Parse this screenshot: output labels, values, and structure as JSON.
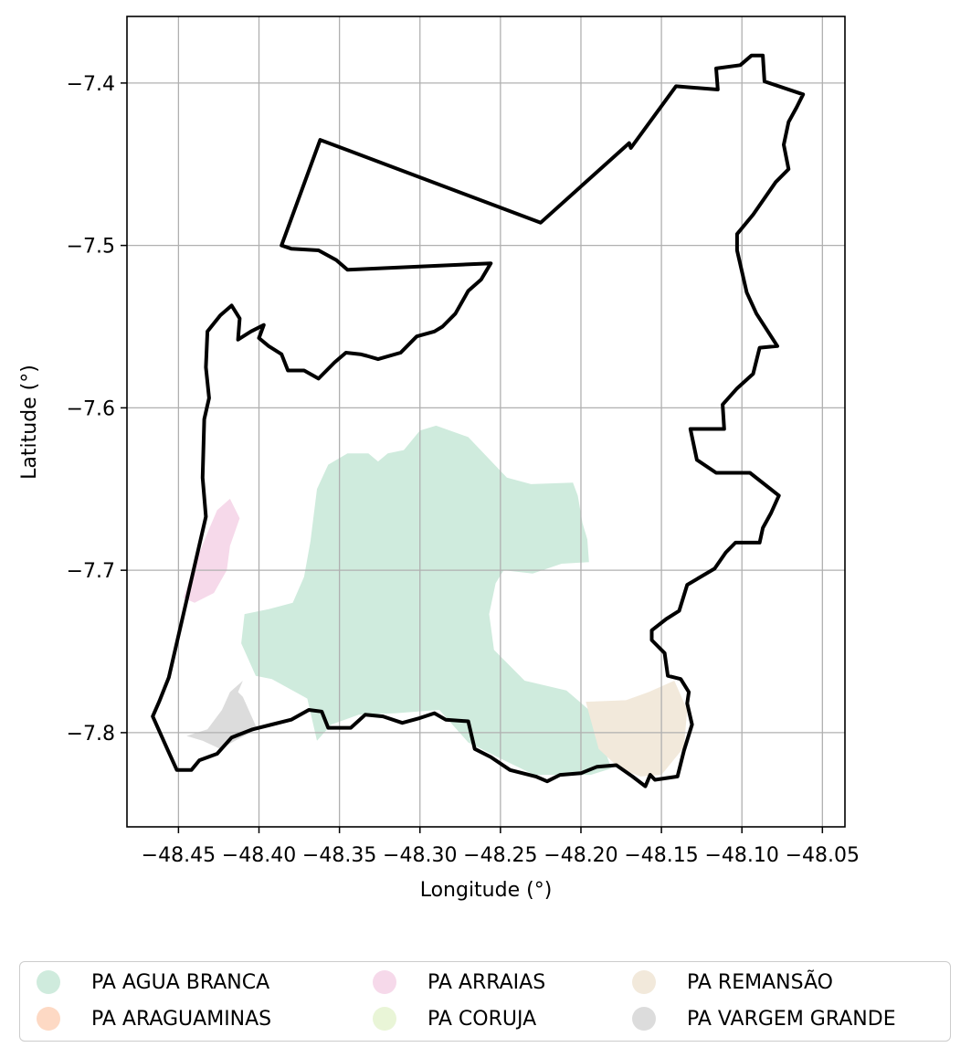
{
  "chart_data": {
    "type": "map",
    "xlabel": "Longitude (°)",
    "ylabel": "Latitude (°)",
    "xlim": [
      -48.482,
      -48.036
    ],
    "ylim": [
      -7.858,
      -7.359
    ],
    "grid": true,
    "xticks": [
      -48.45,
      -48.4,
      -48.35,
      -48.3,
      -48.25,
      -48.2,
      -48.15,
      -48.1,
      -48.05
    ],
    "xtick_labels": [
      "−48.45",
      "−48.40",
      "−48.35",
      "−48.30",
      "−48.25",
      "−48.20",
      "−48.15",
      "−48.10",
      "−48.05"
    ],
    "yticks": [
      -7.4,
      -7.5,
      -7.6,
      -7.7,
      -7.8
    ],
    "ytick_labels": [
      "−7.4",
      "−7.5",
      "−7.6",
      "−7.7",
      "−7.8"
    ],
    "legend_placement": "below plot",
    "boundary": {
      "color": "#000000",
      "coords": [
        [
          -48.386,
          -7.5
        ],
        [
          -48.362,
          -7.435
        ],
        [
          -48.225,
          -7.486
        ],
        [
          -48.17,
          -7.437
        ],
        [
          -48.169,
          -7.44
        ],
        [
          -48.141,
          -7.402
        ],
        [
          -48.115,
          -7.404
        ],
        [
          -48.116,
          -7.391
        ],
        [
          -48.101,
          -7.389
        ],
        [
          -48.094,
          -7.383
        ],
        [
          -48.087,
          -7.383
        ],
        [
          -48.086,
          -7.399
        ],
        [
          -48.062,
          -7.407
        ],
        [
          -48.066,
          -7.415
        ],
        [
          -48.071,
          -7.424
        ],
        [
          -48.074,
          -7.438
        ],
        [
          -48.071,
          -7.453
        ],
        [
          -48.079,
          -7.461
        ],
        [
          -48.093,
          -7.481
        ],
        [
          -48.103,
          -7.493
        ],
        [
          -48.103,
          -7.503
        ],
        [
          -48.097,
          -7.529
        ],
        [
          -48.091,
          -7.542
        ],
        [
          -48.078,
          -7.562
        ],
        [
          -48.089,
          -7.563
        ],
        [
          -48.093,
          -7.579
        ],
        [
          -48.103,
          -7.588
        ],
        [
          -48.112,
          -7.598
        ],
        [
          -48.111,
          -7.613
        ],
        [
          -48.132,
          -7.613
        ],
        [
          -48.128,
          -7.632
        ],
        [
          -48.116,
          -7.64
        ],
        [
          -48.095,
          -7.64
        ],
        [
          -48.077,
          -7.654
        ],
        [
          -48.082,
          -7.665
        ],
        [
          -48.087,
          -7.674
        ],
        [
          -48.089,
          -7.683
        ],
        [
          -48.104,
          -7.683
        ],
        [
          -48.11,
          -7.689
        ],
        [
          -48.117,
          -7.699
        ],
        [
          -48.134,
          -7.709
        ],
        [
          -48.139,
          -7.725
        ],
        [
          -48.147,
          -7.73
        ],
        [
          -48.156,
          -7.737
        ],
        [
          -48.156,
          -7.743
        ],
        [
          -48.148,
          -7.751
        ],
        [
          -48.146,
          -7.765
        ],
        [
          -48.138,
          -7.767
        ],
        [
          -48.133,
          -7.775
        ],
        [
          -48.134,
          -7.782
        ],
        [
          -48.131,
          -7.795
        ],
        [
          -48.136,
          -7.811
        ],
        [
          -48.14,
          -7.827
        ],
        [
          -48.154,
          -7.829
        ],
        [
          -48.157,
          -7.826
        ],
        [
          -48.16,
          -7.833
        ],
        [
          -48.168,
          -7.827
        ],
        [
          -48.178,
          -7.82
        ],
        [
          -48.19,
          -7.821
        ],
        [
          -48.2,
          -7.825
        ],
        [
          -48.213,
          -7.826
        ],
        [
          -48.221,
          -7.83
        ],
        [
          -48.228,
          -7.827
        ],
        [
          -48.244,
          -7.823
        ],
        [
          -48.256,
          -7.815
        ],
        [
          -48.266,
          -7.81
        ],
        [
          -48.27,
          -7.793
        ],
        [
          -48.284,
          -7.792
        ],
        [
          -48.291,
          -7.788
        ],
        [
          -48.3,
          -7.791
        ],
        [
          -48.311,
          -7.794
        ],
        [
          -48.323,
          -7.79
        ],
        [
          -48.334,
          -7.789
        ],
        [
          -48.343,
          -7.797
        ],
        [
          -48.357,
          -7.797
        ],
        [
          -48.361,
          -7.787
        ],
        [
          -48.369,
          -7.786
        ],
        [
          -48.38,
          -7.792
        ],
        [
          -48.392,
          -7.795
        ],
        [
          -48.404,
          -7.798
        ],
        [
          -48.417,
          -7.803
        ],
        [
          -48.426,
          -7.813
        ],
        [
          -48.437,
          -7.817
        ],
        [
          -48.442,
          -7.823
        ],
        [
          -48.451,
          -7.823
        ],
        [
          -48.457,
          -7.81
        ],
        [
          -48.466,
          -7.79
        ],
        [
          -48.462,
          -7.781
        ],
        [
          -48.456,
          -7.766
        ],
        [
          -48.433,
          -7.667
        ],
        [
          -48.435,
          -7.643
        ],
        [
          -48.434,
          -7.607
        ],
        [
          -48.431,
          -7.594
        ],
        [
          -48.433,
          -7.575
        ],
        [
          -48.432,
          -7.553
        ],
        [
          -48.424,
          -7.543
        ],
        [
          -48.417,
          -7.537
        ],
        [
          -48.412,
          -7.545
        ],
        [
          -48.413,
          -7.558
        ],
        [
          -48.405,
          -7.553
        ],
        [
          -48.397,
          -7.549
        ],
        [
          -48.4,
          -7.557
        ],
        [
          -48.394,
          -7.562
        ],
        [
          -48.386,
          -7.567
        ],
        [
          -48.382,
          -7.577
        ],
        [
          -48.372,
          -7.577
        ],
        [
          -48.363,
          -7.582
        ],
        [
          -48.353,
          -7.572
        ],
        [
          -48.346,
          -7.566
        ],
        [
          -48.337,
          -7.567
        ],
        [
          -48.333,
          -7.568
        ],
        [
          -48.326,
          -7.57
        ],
        [
          -48.312,
          -7.566
        ],
        [
          -48.302,
          -7.556
        ],
        [
          -48.291,
          -7.553
        ],
        [
          -48.286,
          -7.55
        ],
        [
          -48.278,
          -7.542
        ],
        [
          -48.27,
          -7.528
        ],
        [
          -48.262,
          -7.521
        ],
        [
          -48.256,
          -7.511
        ],
        [
          -48.345,
          -7.515
        ],
        [
          -48.352,
          -7.509
        ],
        [
          -48.363,
          -7.503
        ],
        [
          -48.38,
          -7.502
        ],
        [
          -48.386,
          -7.5
        ]
      ]
    },
    "regions": [
      {
        "name": "PA AGUA BRANCA",
        "color": "#cfebdd",
        "coords": [
          [
            -48.364,
            -7.805
          ],
          [
            -48.37,
            -7.779
          ],
          [
            -48.392,
            -7.767
          ],
          [
            -48.402,
            -7.765
          ],
          [
            -48.411,
            -7.745
          ],
          [
            -48.409,
            -7.727
          ],
          [
            -48.394,
            -7.724
          ],
          [
            -48.379,
            -7.72
          ],
          [
            -48.372,
            -7.704
          ],
          [
            -48.368,
            -7.682
          ],
          [
            -48.364,
            -7.65
          ],
          [
            -48.357,
            -7.635
          ],
          [
            -48.345,
            -7.628
          ],
          [
            -48.332,
            -7.628
          ],
          [
            -48.326,
            -7.633
          ],
          [
            -48.32,
            -7.628
          ],
          [
            -48.31,
            -7.626
          ],
          [
            -48.3,
            -7.614
          ],
          [
            -48.29,
            -7.611
          ],
          [
            -48.27,
            -7.618
          ],
          [
            -48.246,
            -7.643
          ],
          [
            -48.231,
            -7.647
          ],
          [
            -48.205,
            -7.646
          ],
          [
            -48.202,
            -7.654
          ],
          [
            -48.199,
            -7.671
          ],
          [
            -48.196,
            -7.681
          ],
          [
            -48.195,
            -7.695
          ],
          [
            -48.212,
            -7.696
          ],
          [
            -48.23,
            -7.702
          ],
          [
            -48.248,
            -7.7
          ],
          [
            -48.253,
            -7.708
          ],
          [
            -48.257,
            -7.727
          ],
          [
            -48.254,
            -7.749
          ],
          [
            -48.235,
            -7.768
          ],
          [
            -48.209,
            -7.774
          ],
          [
            -48.195,
            -7.786
          ],
          [
            -48.181,
            -7.822
          ],
          [
            -48.194,
            -7.826
          ],
          [
            -48.215,
            -7.826
          ],
          [
            -48.229,
            -7.826
          ],
          [
            -48.25,
            -7.816
          ],
          [
            -48.27,
            -7.806
          ],
          [
            -48.288,
            -7.786
          ],
          [
            -48.315,
            -7.788
          ],
          [
            -48.338,
            -7.789
          ],
          [
            -48.355,
            -7.795
          ],
          [
            -48.364,
            -7.805
          ]
        ]
      },
      {
        "name": "PA ARAGUAMINAS",
        "color": "#fdd9c4",
        "coords": []
      },
      {
        "name": "PA ARRAIAS",
        "color": "#f6d9ea",
        "coords": [
          [
            -48.432,
            -7.677
          ],
          [
            -48.426,
            -7.663
          ],
          [
            -48.418,
            -7.656
          ],
          [
            -48.412,
            -7.668
          ],
          [
            -48.418,
            -7.685
          ],
          [
            -48.42,
            -7.7
          ],
          [
            -48.428,
            -7.714
          ],
          [
            -48.44,
            -7.72
          ],
          [
            -48.447,
            -7.717
          ],
          [
            -48.441,
            -7.699
          ],
          [
            -48.432,
            -7.677
          ]
        ]
      },
      {
        "name": "PA CORUJA",
        "color": "#e9f5d7",
        "coords": []
      },
      {
        "name": "PA REMANSÃO",
        "color": "#f2e9db",
        "coords": [
          [
            -48.142,
            -7.768
          ],
          [
            -48.158,
            -7.775
          ],
          [
            -48.172,
            -7.78
          ],
          [
            -48.197,
            -7.781
          ],
          [
            -48.189,
            -7.81
          ],
          [
            -48.176,
            -7.822
          ],
          [
            -48.163,
            -7.827
          ],
          [
            -48.15,
            -7.826
          ],
          [
            -48.136,
            -7.809
          ],
          [
            -48.134,
            -7.786
          ],
          [
            -48.142,
            -7.768
          ]
        ]
      },
      {
        "name": "PA VARGEM GRANDE",
        "color": "#dcdcdc",
        "coords": [
          [
            -48.41,
            -7.768
          ],
          [
            -48.418,
            -7.775
          ],
          [
            -48.423,
            -7.786
          ],
          [
            -48.432,
            -7.798
          ],
          [
            -48.445,
            -7.802
          ],
          [
            -48.435,
            -7.805
          ],
          [
            -48.424,
            -7.81
          ],
          [
            -48.413,
            -7.804
          ],
          [
            -48.401,
            -7.798
          ],
          [
            -48.41,
            -7.778
          ],
          [
            -48.413,
            -7.775
          ],
          [
            -48.41,
            -7.768
          ]
        ]
      }
    ]
  },
  "legend": {
    "items": [
      {
        "label": "PA AGUA BRANCA",
        "color": "#cfebdd"
      },
      {
        "label": "PA ARAGUAMINAS",
        "color": "#fdd9c4"
      },
      {
        "label": "PA ARRAIAS",
        "color": "#f6d9ea"
      },
      {
        "label": "PA CORUJA",
        "color": "#e9f5d7"
      },
      {
        "label": "PA REMANSÃO",
        "color": "#f2e9db"
      },
      {
        "label": "PA VARGEM GRANDE",
        "color": "#dcdcdc"
      }
    ]
  }
}
